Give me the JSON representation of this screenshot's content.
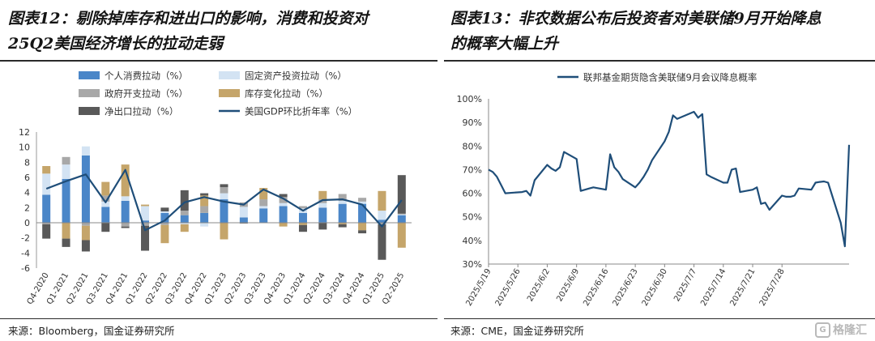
{
  "left": {
    "title_line1": "图表12：剔除掉库存和进出口的影响，消费和投资对",
    "title_line2": "25Q2美国经济增长的拉动走弱",
    "source": "来源：Bloomberg，国金证券研究所"
  },
  "right": {
    "title_line1": "图表13：非农数据公布后投资者对美联储9月开始降息",
    "title_line2": "的概率大幅上升",
    "source": "来源：CME，国金证券研究所"
  },
  "watermark": {
    "text": "格隆汇",
    "icon": "watermark-logo-icon"
  },
  "colors": {
    "consumption": "#4a86c8",
    "investment": "#d3e3f3",
    "government": "#a8a8a8",
    "inventory": "#c5a56a",
    "net_export": "#595959",
    "gdp": "#1f4e79",
    "prob_line": "#1f4e79"
  },
  "chart_data": [
    {
      "type": "bar",
      "stacked": true,
      "categories": [
        "Q4-2020",
        "Q1-2021",
        "Q2-2021",
        "Q3-2021",
        "Q4-2021",
        "Q1-2022",
        "Q2-2022",
        "Q3-2022",
        "Q4-2022",
        "Q1-2023",
        "Q2-2023",
        "Q3-2023",
        "Q4-2023",
        "Q1-2024",
        "Q2-2024",
        "Q3-2024",
        "Q4-2024",
        "Q1-2025",
        "Q2-2025"
      ],
      "series": [
        {
          "name": "个人消费拉动（%）",
          "values": [
            3.7,
            5.8,
            8.9,
            2.1,
            2.9,
            0.3,
            1.3,
            1.0,
            1.3,
            3.1,
            0.7,
            1.9,
            2.2,
            1.3,
            2.0,
            2.5,
            2.5,
            0.4,
            1.0
          ]
        },
        {
          "name": "固定资产投资拉动（%）",
          "values": [
            2.8,
            1.9,
            1.2,
            0.7,
            0.6,
            1.9,
            0.2,
            -0.2,
            -0.5,
            0.8,
            1.4,
            0.3,
            0.4,
            0.6,
            0.6,
            0.4,
            0.3,
            1.2,
            0.1
          ]
        },
        {
          "name": "政府开支拉动（%）",
          "values": [
            -0.2,
            1.0,
            -0.4,
            0.8,
            -0.5,
            -0.4,
            -0.3,
            0.6,
            0.9,
            0.8,
            0.6,
            0.9,
            0.8,
            0.3,
            0.5,
            0.9,
            0.5,
            -0.2,
            0.1
          ]
        },
        {
          "name": "库存变化拉动（%）",
          "values": [
            1.0,
            -2.1,
            -1.9,
            1.8,
            4.2,
            0.2,
            -2.4,
            -1.0,
            1.4,
            -2.2,
            0.0,
            1.5,
            -0.5,
            -0.3,
            1.1,
            -0.2,
            -1.0,
            2.6,
            -3.3
          ]
        },
        {
          "name": "净出口拉动（%）",
          "values": [
            -1.9,
            -1.1,
            -1.5,
            -1.2,
            -0.2,
            -3.3,
            0.5,
            2.7,
            0.3,
            0.4,
            -0.1,
            0.0,
            0.4,
            -0.9,
            -0.9,
            -0.4,
            -0.4,
            -4.7,
            5.1
          ]
        }
      ],
      "line": {
        "name": "美国GDP环比折年率（%）",
        "values": [
          4.5,
          5.5,
          6.4,
          2.7,
          7.0,
          -1.0,
          0.3,
          2.7,
          3.4,
          2.8,
          2.4,
          4.4,
          3.2,
          1.6,
          3.0,
          3.1,
          2.4,
          -0.5,
          3.0
        ]
      },
      "ylim": [
        -6,
        12
      ],
      "yticks": [
        "-6",
        "-4",
        "-2",
        "0",
        "2",
        "4",
        "6",
        "8",
        "10",
        "12"
      ],
      "legend_position": "top"
    },
    {
      "type": "line",
      "series": [
        {
          "name": "联邦基金期货隐含美联储9月会议降息概率"
        }
      ],
      "xtick_labels": [
        "2025/5/19",
        "2025/5/26",
        "2025/6/2",
        "2025/6/9",
        "2025/6/16",
        "2025/6/23",
        "2025/6/30",
        "2025/7/7",
        "2025/7/14",
        "2025/7/21",
        "2025/7/28"
      ],
      "yticks": [
        "30%",
        "40%",
        "50%",
        "60%",
        "70%",
        "80%",
        "90%",
        "100%"
      ],
      "ylim": [
        30,
        100
      ],
      "points": [
        [
          "2025/5/19",
          70
        ],
        [
          "2025/5/20",
          69
        ],
        [
          "2025/5/21",
          67
        ],
        [
          "2025/5/22",
          63.5
        ],
        [
          "2025/5/23",
          60
        ],
        [
          "2025/5/27",
          60.5
        ],
        [
          "2025/5/28",
          61
        ],
        [
          "2025/5/29",
          59
        ],
        [
          "2025/5/30",
          65.5
        ],
        [
          "2025/6/2",
          72
        ],
        [
          "2025/6/3",
          70.5
        ],
        [
          "2025/6/4",
          69.5
        ],
        [
          "2025/6/5",
          71
        ],
        [
          "2025/6/6",
          77.5
        ],
        [
          "2025/6/9",
          74.5
        ],
        [
          "2025/6/10",
          61
        ],
        [
          "2025/6/11",
          61.5
        ],
        [
          "2025/6/12",
          62
        ],
        [
          "2025/6/13",
          62.5
        ],
        [
          "2025/6/16",
          61.5
        ],
        [
          "2025/6/17",
          76.5
        ],
        [
          "2025/6/18",
          71
        ],
        [
          "2025/6/19",
          69
        ],
        [
          "2025/6/20",
          66
        ],
        [
          "2025/6/23",
          62.5
        ],
        [
          "2025/6/24",
          64.5
        ],
        [
          "2025/6/25",
          67
        ],
        [
          "2025/6/26",
          70
        ],
        [
          "2025/6/27",
          74
        ],
        [
          "2025/6/30",
          82
        ],
        [
          "2025/7/1",
          86
        ],
        [
          "2025/7/2",
          93
        ],
        [
          "2025/7/3",
          91.5
        ],
        [
          "2025/7/7",
          94.5
        ],
        [
          "2025/7/8",
          92
        ],
        [
          "2025/7/9",
          93.5
        ],
        [
          "2025/7/10",
          68
        ],
        [
          "2025/7/11",
          67
        ],
        [
          "2025/7/14",
          64.5
        ],
        [
          "2025/7/15",
          64.5
        ],
        [
          "2025/7/16",
          70
        ],
        [
          "2025/7/17",
          70.5
        ],
        [
          "2025/7/18",
          60.5
        ],
        [
          "2025/7/21",
          61.5
        ],
        [
          "2025/7/22",
          62.5
        ],
        [
          "2025/7/23",
          55.5
        ],
        [
          "2025/7/24",
          56
        ],
        [
          "2025/7/25",
          53
        ],
        [
          "2025/7/28",
          59
        ],
        [
          "2025/7/29",
          58.5
        ],
        [
          "2025/7/30",
          58.5
        ],
        [
          "2025/7/31",
          59
        ],
        [
          "2025/8/1",
          62
        ],
        [
          "2025/8/4",
          61.5
        ],
        [
          "2025/8/5",
          64.5
        ],
        [
          "2025/8/6",
          64.8
        ],
        [
          "2025/8/7",
          65
        ],
        [
          "2025/8/8",
          64.5
        ],
        [
          "2025/8/11",
          47.5
        ],
        [
          "2025/8/12",
          37.5
        ],
        [
          "2025/8/13",
          80.5
        ]
      ],
      "legend_position": "top-left"
    }
  ]
}
